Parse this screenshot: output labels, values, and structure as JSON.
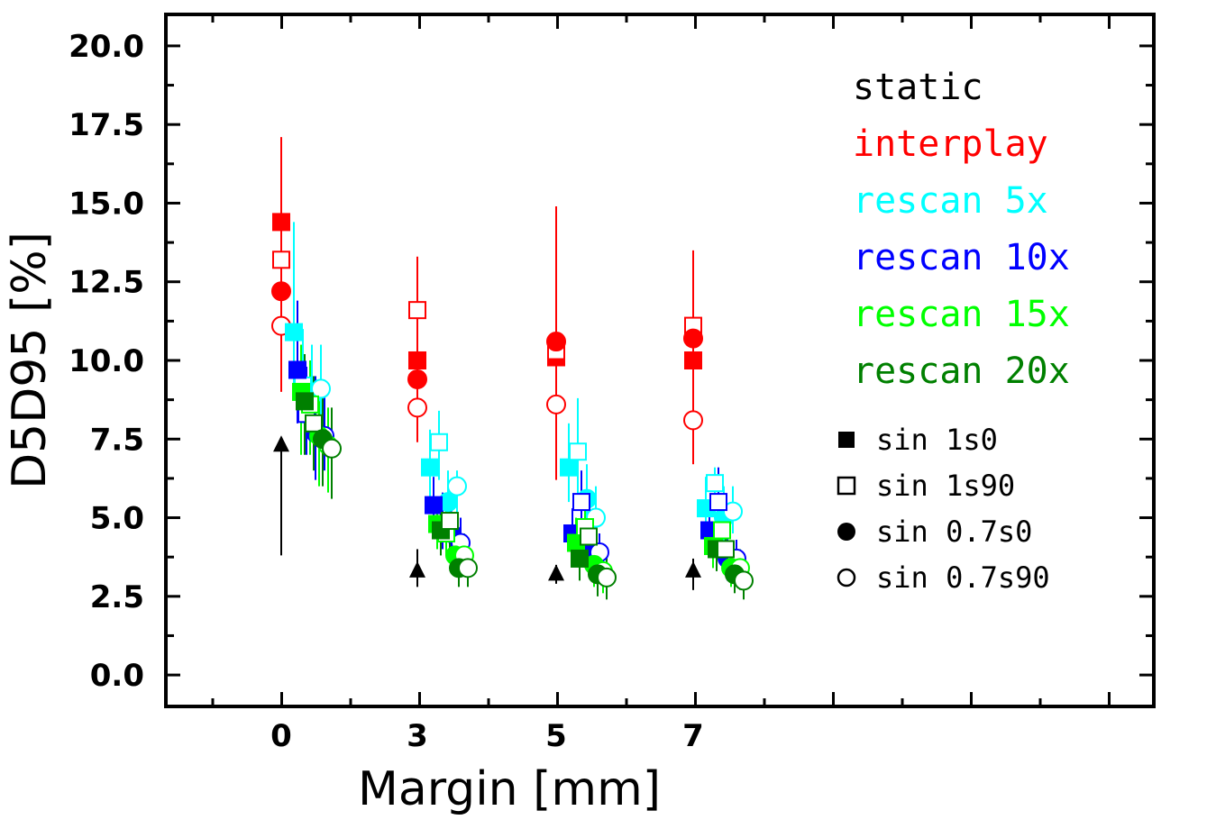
{
  "chart_data": {
    "type": "scatter",
    "xlabel": "Margin [mm]",
    "ylabel": "D5D95 [%]",
    "x_ticks": [
      "0",
      "3",
      "5",
      "7"
    ],
    "y_ticks": [
      "0.0",
      "2.5",
      "5.0",
      "7.5",
      "10.0",
      "12.5",
      "15.0",
      "17.5",
      "20.0"
    ],
    "ylim": [
      -1,
      21
    ],
    "grid": false,
    "legend_position": "top-right",
    "series": [
      {
        "name": "static",
        "color": "#000000",
        "points": [
          {
            "x": "0",
            "marker": "triangle",
            "y": 7.3,
            "lo": 3.8,
            "hi": 7.5
          }
        ]
      },
      {
        "name": "static",
        "color": "#000000",
        "points": [
          {
            "x": "3",
            "marker": "triangle",
            "y": 3.3,
            "lo": 2.8,
            "hi": 4.0
          },
          {
            "x": "5",
            "marker": "triangle",
            "y": 3.2,
            "lo": 2.9,
            "hi": 3.5
          },
          {
            "x": "7",
            "marker": "triangle",
            "y": 3.3,
            "lo": 2.7,
            "hi": 3.7
          }
        ]
      },
      {
        "name": "interplay",
        "color": "#ff0000",
        "points": [
          {
            "x": "0",
            "marker": "square-filled",
            "y": 14.4,
            "lo": 12.0,
            "hi": 16.8
          },
          {
            "x": "0",
            "marker": "square-open",
            "y": 13.2,
            "lo": 10.5,
            "hi": 15.0
          },
          {
            "x": "0",
            "marker": "circle-filled",
            "y": 12.2,
            "lo": 10.0,
            "hi": 15.5
          },
          {
            "x": "0",
            "marker": "circle-open",
            "y": 11.1,
            "lo": 9.0,
            "hi": 17.1
          },
          {
            "x": "3",
            "marker": "square-filled",
            "y": 10.0,
            "lo": 8.5,
            "hi": 11.5
          },
          {
            "x": "3",
            "marker": "square-open",
            "y": 11.6,
            "lo": 10.0,
            "hi": 13.3
          },
          {
            "x": "3",
            "marker": "circle-filled",
            "y": 9.4,
            "lo": 8.0,
            "hi": 11.0
          },
          {
            "x": "3",
            "marker": "circle-open",
            "y": 8.5,
            "lo": 7.4,
            "hi": 10.0
          },
          {
            "x": "5",
            "marker": "square-filled",
            "y": 10.1,
            "lo": 8.0,
            "hi": 13.0
          },
          {
            "x": "5",
            "marker": "square-open",
            "y": 10.3,
            "lo": 8.0,
            "hi": 13.5
          },
          {
            "x": "5",
            "marker": "circle-filled",
            "y": 10.6,
            "lo": 8.0,
            "hi": 14.9
          },
          {
            "x": "5",
            "marker": "circle-open",
            "y": 8.6,
            "lo": 6.2,
            "hi": 10.5
          },
          {
            "x": "7",
            "marker": "square-filled",
            "y": 10.0,
            "lo": 8.5,
            "hi": 11.5
          },
          {
            "x": "7",
            "marker": "square-open",
            "y": 11.1,
            "lo": 9.5,
            "hi": 13.5
          },
          {
            "x": "7",
            "marker": "circle-filled",
            "y": 10.7,
            "lo": 9.0,
            "hi": 12.5
          },
          {
            "x": "7",
            "marker": "circle-open",
            "y": 8.1,
            "lo": 6.7,
            "hi": 9.5
          }
        ]
      },
      {
        "name": "rescan 5x",
        "color": "#00ffff",
        "points": [
          {
            "x": "0",
            "marker": "square-filled",
            "y": 10.9,
            "lo": 9.0,
            "hi": 14.4
          },
          {
            "x": "0",
            "marker": "square-open",
            "y": 9.2,
            "lo": 8.0,
            "hi": 11.0
          },
          {
            "x": "0",
            "marker": "circle-filled",
            "y": 8.9,
            "lo": 7.5,
            "hi": 10.5
          },
          {
            "x": "0",
            "marker": "circle-open",
            "y": 9.1,
            "lo": 7.8,
            "hi": 10.5
          },
          {
            "x": "3",
            "marker": "square-filled",
            "y": 6.6,
            "lo": 5.5,
            "hi": 7.8
          },
          {
            "x": "3",
            "marker": "square-open",
            "y": 7.4,
            "lo": 6.2,
            "hi": 8.4
          },
          {
            "x": "3",
            "marker": "circle-filled",
            "y": 5.5,
            "lo": 4.5,
            "hi": 6.5
          },
          {
            "x": "3",
            "marker": "circle-open",
            "y": 6.0,
            "lo": 5.0,
            "hi": 6.5
          },
          {
            "x": "5",
            "marker": "square-filled",
            "y": 6.6,
            "lo": 5.5,
            "hi": 8.0
          },
          {
            "x": "5",
            "marker": "square-open",
            "y": 7.1,
            "lo": 5.7,
            "hi": 8.8
          },
          {
            "x": "5",
            "marker": "circle-filled",
            "y": 5.6,
            "lo": 4.5,
            "hi": 6.7
          },
          {
            "x": "5",
            "marker": "circle-open",
            "y": 5.0,
            "lo": 4.0,
            "hi": 6.0
          },
          {
            "x": "7",
            "marker": "square-filled",
            "y": 5.3,
            "lo": 4.5,
            "hi": 6.3
          },
          {
            "x": "7",
            "marker": "square-open",
            "y": 6.1,
            "lo": 5.0,
            "hi": 6.6
          },
          {
            "x": "7",
            "marker": "circle-filled",
            "y": 5.0,
            "lo": 4.2,
            "hi": 6.0
          },
          {
            "x": "7",
            "marker": "circle-open",
            "y": 5.2,
            "lo": 4.5,
            "hi": 6.0
          }
        ]
      },
      {
        "name": "rescan 10x",
        "color": "#0000ff",
        "points": [
          {
            "x": "0",
            "marker": "square-filled",
            "y": 9.7,
            "lo": 8.0,
            "hi": 11.9
          },
          {
            "x": "0",
            "marker": "square-open",
            "y": 8.3,
            "lo": 7.0,
            "hi": 9.8
          },
          {
            "x": "0",
            "marker": "circle-filled",
            "y": 7.7,
            "lo": 6.2,
            "hi": 9.5
          },
          {
            "x": "0",
            "marker": "circle-open",
            "y": 7.6,
            "lo": 6.5,
            "hi": 9.0
          },
          {
            "x": "3",
            "marker": "square-filled",
            "y": 5.4,
            "lo": 4.5,
            "hi": 6.3
          },
          {
            "x": "3",
            "marker": "square-open",
            "y": 4.8,
            "lo": 4.0,
            "hi": 5.8
          },
          {
            "x": "3",
            "marker": "circle-filled",
            "y": 4.5,
            "lo": 3.8,
            "hi": 5.2
          },
          {
            "x": "3",
            "marker": "circle-open",
            "y": 4.2,
            "lo": 3.5,
            "hi": 5.0
          },
          {
            "x": "5",
            "marker": "square-filled",
            "y": 4.5,
            "lo": 3.8,
            "hi": 5.3
          },
          {
            "x": "5",
            "marker": "square-open",
            "y": 5.5,
            "lo": 4.5,
            "hi": 6.5
          },
          {
            "x": "5",
            "marker": "circle-filled",
            "y": 4.0,
            "lo": 3.4,
            "hi": 4.8
          },
          {
            "x": "5",
            "marker": "circle-open",
            "y": 3.9,
            "lo": 3.2,
            "hi": 4.5
          },
          {
            "x": "7",
            "marker": "square-filled",
            "y": 4.6,
            "lo": 3.8,
            "hi": 5.5
          },
          {
            "x": "7",
            "marker": "square-open",
            "y": 5.5,
            "lo": 4.3,
            "hi": 6.6
          },
          {
            "x": "7",
            "marker": "circle-filled",
            "y": 3.7,
            "lo": 3.0,
            "hi": 4.5
          },
          {
            "x": "7",
            "marker": "circle-open",
            "y": 3.7,
            "lo": 3.0,
            "hi": 4.3
          }
        ]
      },
      {
        "name": "rescan 15x",
        "color": "#00ff00",
        "points": [
          {
            "x": "0",
            "marker": "square-filled",
            "y": 9.0,
            "lo": 7.0,
            "hi": 10.5
          },
          {
            "x": "0",
            "marker": "square-open",
            "y": 8.6,
            "lo": 7.0,
            "hi": 10.0
          },
          {
            "x": "0",
            "marker": "circle-filled",
            "y": 7.6,
            "lo": 6.0,
            "hi": 9.0
          },
          {
            "x": "0",
            "marker": "circle-open",
            "y": 7.3,
            "lo": 5.8,
            "hi": 8.5
          },
          {
            "x": "3",
            "marker": "square-filled",
            "y": 4.8,
            "lo": 4.0,
            "hi": 5.6
          },
          {
            "x": "3",
            "marker": "square-open",
            "y": 4.5,
            "lo": 3.8,
            "hi": 5.3
          },
          {
            "x": "3",
            "marker": "circle-filled",
            "y": 3.8,
            "lo": 3.2,
            "hi": 4.5
          },
          {
            "x": "3",
            "marker": "circle-open",
            "y": 3.8,
            "lo": 3.2,
            "hi": 4.5
          },
          {
            "x": "5",
            "marker": "square-filled",
            "y": 4.2,
            "lo": 3.5,
            "hi": 5.0
          },
          {
            "x": "5",
            "marker": "square-open",
            "y": 4.7,
            "lo": 3.8,
            "hi": 5.5
          },
          {
            "x": "5",
            "marker": "circle-filled",
            "y": 3.5,
            "lo": 2.8,
            "hi": 4.2
          },
          {
            "x": "5",
            "marker": "circle-open",
            "y": 3.3,
            "lo": 2.6,
            "hi": 4.0
          },
          {
            "x": "7",
            "marker": "square-filled",
            "y": 4.1,
            "lo": 3.4,
            "hi": 4.8
          },
          {
            "x": "7",
            "marker": "square-open",
            "y": 4.6,
            "lo": 3.7,
            "hi": 5.5
          },
          {
            "x": "7",
            "marker": "circle-filled",
            "y": 3.4,
            "lo": 2.8,
            "hi": 4.0
          },
          {
            "x": "7",
            "marker": "circle-open",
            "y": 3.4,
            "lo": 2.7,
            "hi": 4.0
          }
        ]
      },
      {
        "name": "rescan 20x",
        "color": "#008000",
        "points": [
          {
            "x": "0",
            "marker": "square-filled",
            "y": 8.7,
            "lo": 7.0,
            "hi": 10.2
          },
          {
            "x": "0",
            "marker": "square-open",
            "y": 8.0,
            "lo": 6.5,
            "hi": 9.5
          },
          {
            "x": "0",
            "marker": "circle-filled",
            "y": 7.5,
            "lo": 6.0,
            "hi": 9.0
          },
          {
            "x": "0",
            "marker": "circle-open",
            "y": 7.2,
            "lo": 5.6,
            "hi": 8.5
          },
          {
            "x": "3",
            "marker": "square-filled",
            "y": 4.6,
            "lo": 3.8,
            "hi": 5.4
          },
          {
            "x": "3",
            "marker": "square-open",
            "y": 4.9,
            "lo": 4.0,
            "hi": 5.7
          },
          {
            "x": "3",
            "marker": "circle-filled",
            "y": 3.4,
            "lo": 2.8,
            "hi": 4.0
          },
          {
            "x": "3",
            "marker": "circle-open",
            "y": 3.4,
            "lo": 2.8,
            "hi": 4.0
          },
          {
            "x": "5",
            "marker": "square-filled",
            "y": 3.7,
            "lo": 3.0,
            "hi": 4.4
          },
          {
            "x": "5",
            "marker": "square-open",
            "y": 4.4,
            "lo": 3.6,
            "hi": 5.2
          },
          {
            "x": "5",
            "marker": "circle-filled",
            "y": 3.2,
            "lo": 2.5,
            "hi": 3.9
          },
          {
            "x": "5",
            "marker": "circle-open",
            "y": 3.1,
            "lo": 2.4,
            "hi": 3.8
          },
          {
            "x": "7",
            "marker": "square-filled",
            "y": 4.0,
            "lo": 3.3,
            "hi": 4.7
          },
          {
            "x": "7",
            "marker": "square-open",
            "y": 4.0,
            "lo": 3.3,
            "hi": 4.7
          },
          {
            "x": "7",
            "marker": "circle-filled",
            "y": 3.2,
            "lo": 2.6,
            "hi": 3.8
          },
          {
            "x": "7",
            "marker": "circle-open",
            "y": 3.0,
            "lo": 2.4,
            "hi": 3.6
          }
        ]
      }
    ],
    "legend": {
      "series": [
        {
          "label": "static",
          "color": "#000000"
        },
        {
          "label": "interplay",
          "color": "#ff0000"
        },
        {
          "label": "rescan 5x",
          "color": "#00ffff"
        },
        {
          "label": "rescan 10x",
          "color": "#0000ff"
        },
        {
          "label": "rescan 15x",
          "color": "#00ff00"
        },
        {
          "label": "rescan 20x",
          "color": "#008000"
        }
      ],
      "markers": [
        {
          "label": "sin 1s0",
          "marker": "square-filled"
        },
        {
          "label": "sin 1s90",
          "marker": "square-open"
        },
        {
          "label": "sin 0.7s0",
          "marker": "circle-filled"
        },
        {
          "label": "sin 0.7s90",
          "marker": "circle-open"
        }
      ]
    }
  }
}
